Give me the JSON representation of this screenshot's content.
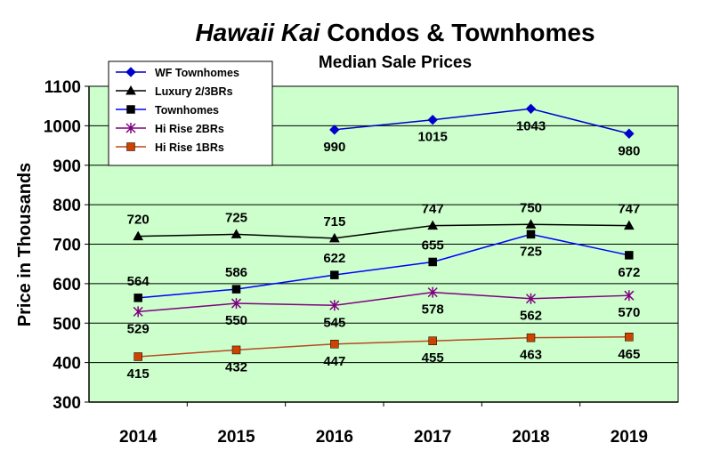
{
  "chart_data": {
    "type": "line",
    "title_italic": "Hawaii Kai",
    "title_rest": " Condos & Townhomes",
    "subtitle": "Median Sale Prices",
    "xlabel": "",
    "ylabel": "Price in Thousands",
    "ylim": [
      300,
      1100
    ],
    "yticks": [
      300,
      400,
      500,
      600,
      700,
      800,
      900,
      1000,
      1100
    ],
    "categories": [
      "2014",
      "2015",
      "2016",
      "2017",
      "2018",
      "2019"
    ],
    "grid": true,
    "legend_position": "top-left",
    "plot_background": "#ccffcc",
    "series": [
      {
        "name": "WF Townhomes",
        "color": "#0000cc",
        "marker": "diamond",
        "values": [
          null,
          null,
          990,
          1015,
          1043,
          980
        ],
        "labels": [
          "",
          "",
          "990",
          "1015",
          "1043",
          "980"
        ],
        "label_position": "below"
      },
      {
        "name": "Luxury 2/3BRs",
        "color": "#000000",
        "marker": "triangle",
        "values": [
          720,
          725,
          715,
          747,
          750,
          747
        ],
        "labels": [
          "720",
          "725",
          "715",
          "747",
          "750",
          "747"
        ],
        "label_position": "above"
      },
      {
        "name": "Townhomes",
        "color": "#0000ff",
        "marker_color": "#000000",
        "marker": "square",
        "values": [
          564,
          586,
          622,
          655,
          725,
          672
        ],
        "labels": [
          "564",
          "586",
          "622",
          "655",
          "725",
          "672"
        ],
        "label_position": [
          "above",
          "above",
          "above",
          "above",
          "below",
          "below"
        ]
      },
      {
        "name": "Hi Rise 2BRs",
        "color": "#800080",
        "marker": "asterisk",
        "values": [
          529,
          550,
          545,
          578,
          562,
          570
        ],
        "labels": [
          "529",
          "550",
          "545",
          "578",
          "562",
          "570"
        ],
        "label_position": "below"
      },
      {
        "name": "Hi Rise 1BRs",
        "color": "#b84a1f",
        "marker_color": "#cc4400",
        "marker": "square",
        "values": [
          415,
          432,
          447,
          455,
          463,
          465
        ],
        "labels": [
          "415",
          "432",
          "447",
          "455",
          "463",
          "465"
        ],
        "label_position": "below"
      }
    ]
  }
}
